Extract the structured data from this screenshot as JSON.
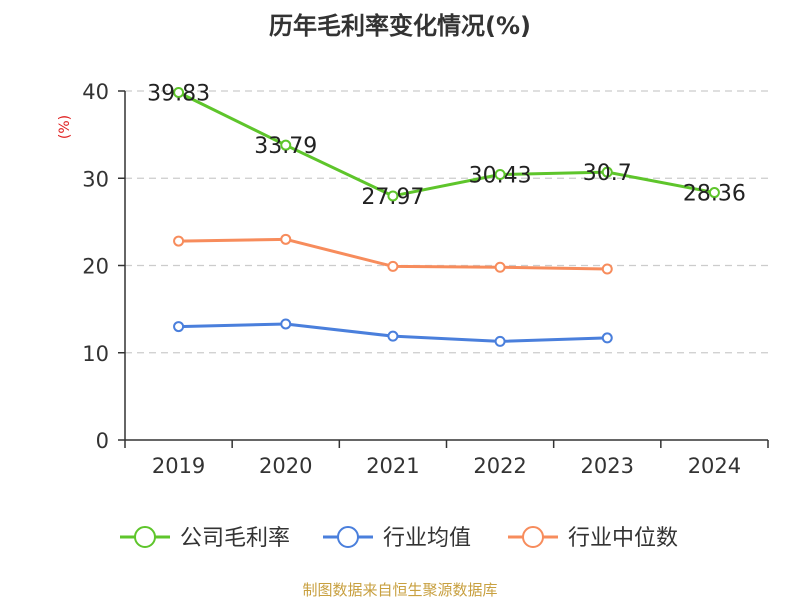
{
  "chart_data": {
    "type": "line",
    "title": "历年毛利率变化情况(%)",
    "ylabel": "(%)",
    "xlabel": "",
    "categories": [
      "2019",
      "2020",
      "2021",
      "2022",
      "2023",
      "2024"
    ],
    "ylim": [
      0,
      40
    ],
    "yticks": [
      0,
      10,
      20,
      30,
      40
    ],
    "grid": true,
    "legend_position": "bottom",
    "series": [
      {
        "name": "公司毛利率",
        "color": "#5ec52b",
        "values": [
          39.83,
          33.79,
          27.97,
          30.43,
          30.7,
          28.36
        ],
        "labels": [
          "39.83",
          "33.79",
          "27.97",
          "30.43",
          "30.7",
          "28.36"
        ]
      },
      {
        "name": "行业均值",
        "color": "#4a7fdc",
        "values": [
          13.0,
          13.3,
          11.9,
          11.3,
          11.7,
          null
        ]
      },
      {
        "name": "行业中位数",
        "color": "#f78c5c",
        "values": [
          22.8,
          23.0,
          19.9,
          19.8,
          19.6,
          null
        ]
      }
    ]
  },
  "footer": {
    "source": "制图数据来自恒生聚源数据库"
  }
}
